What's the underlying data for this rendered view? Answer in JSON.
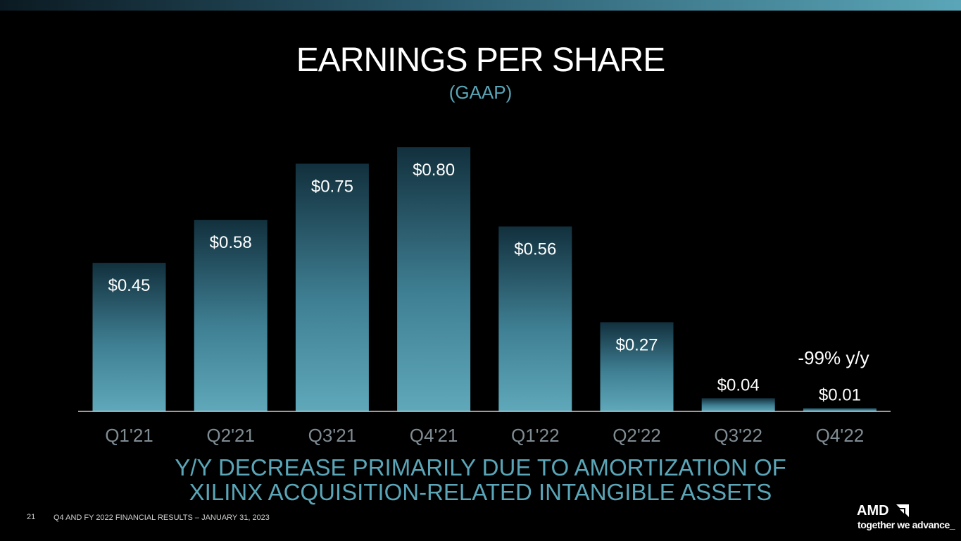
{
  "header": {
    "title": "EARNINGS PER SHARE",
    "subtitle": "(GAAP)"
  },
  "chart_data": {
    "type": "bar",
    "title": "EARNINGS PER SHARE",
    "subtitle": "(GAAP)",
    "categories": [
      "Q1'21",
      "Q2'21",
      "Q3'21",
      "Q4'21",
      "Q1'22",
      "Q2'22",
      "Q3'22",
      "Q4'22"
    ],
    "values": [
      0.45,
      0.58,
      0.75,
      0.8,
      0.56,
      0.27,
      0.04,
      0.01
    ],
    "data_labels": [
      "$0.45",
      "$0.58",
      "$0.75",
      "$0.80",
      "$0.56",
      "$0.27",
      "$0.04",
      "$0.01"
    ],
    "annotation": "-99% y/y",
    "xlabel": "",
    "ylabel": "",
    "ylim": [
      0,
      0.8
    ],
    "grid": false,
    "legend": "none"
  },
  "footnote": {
    "line1": "Y/Y DECREASE PRIMARILY DUE TO AMORTIZATION OF",
    "line2": "XILINX ACQUISITION-RELATED INTANGIBLE ASSETS"
  },
  "footer": {
    "page_number": "21",
    "text": "Q4 AND FY 2022 FINANCIAL RESULTS – JANUARY 31, 2023"
  },
  "logo": {
    "name": "AMD",
    "tagline": "together we advance_"
  },
  "colors": {
    "background": "#000000",
    "bar_top": "#12303d",
    "bar_bottom": "#5fa8ba",
    "accent": "#5aa6b8",
    "axis": "#d0d0d0",
    "tick_text": "#7f8c93"
  }
}
